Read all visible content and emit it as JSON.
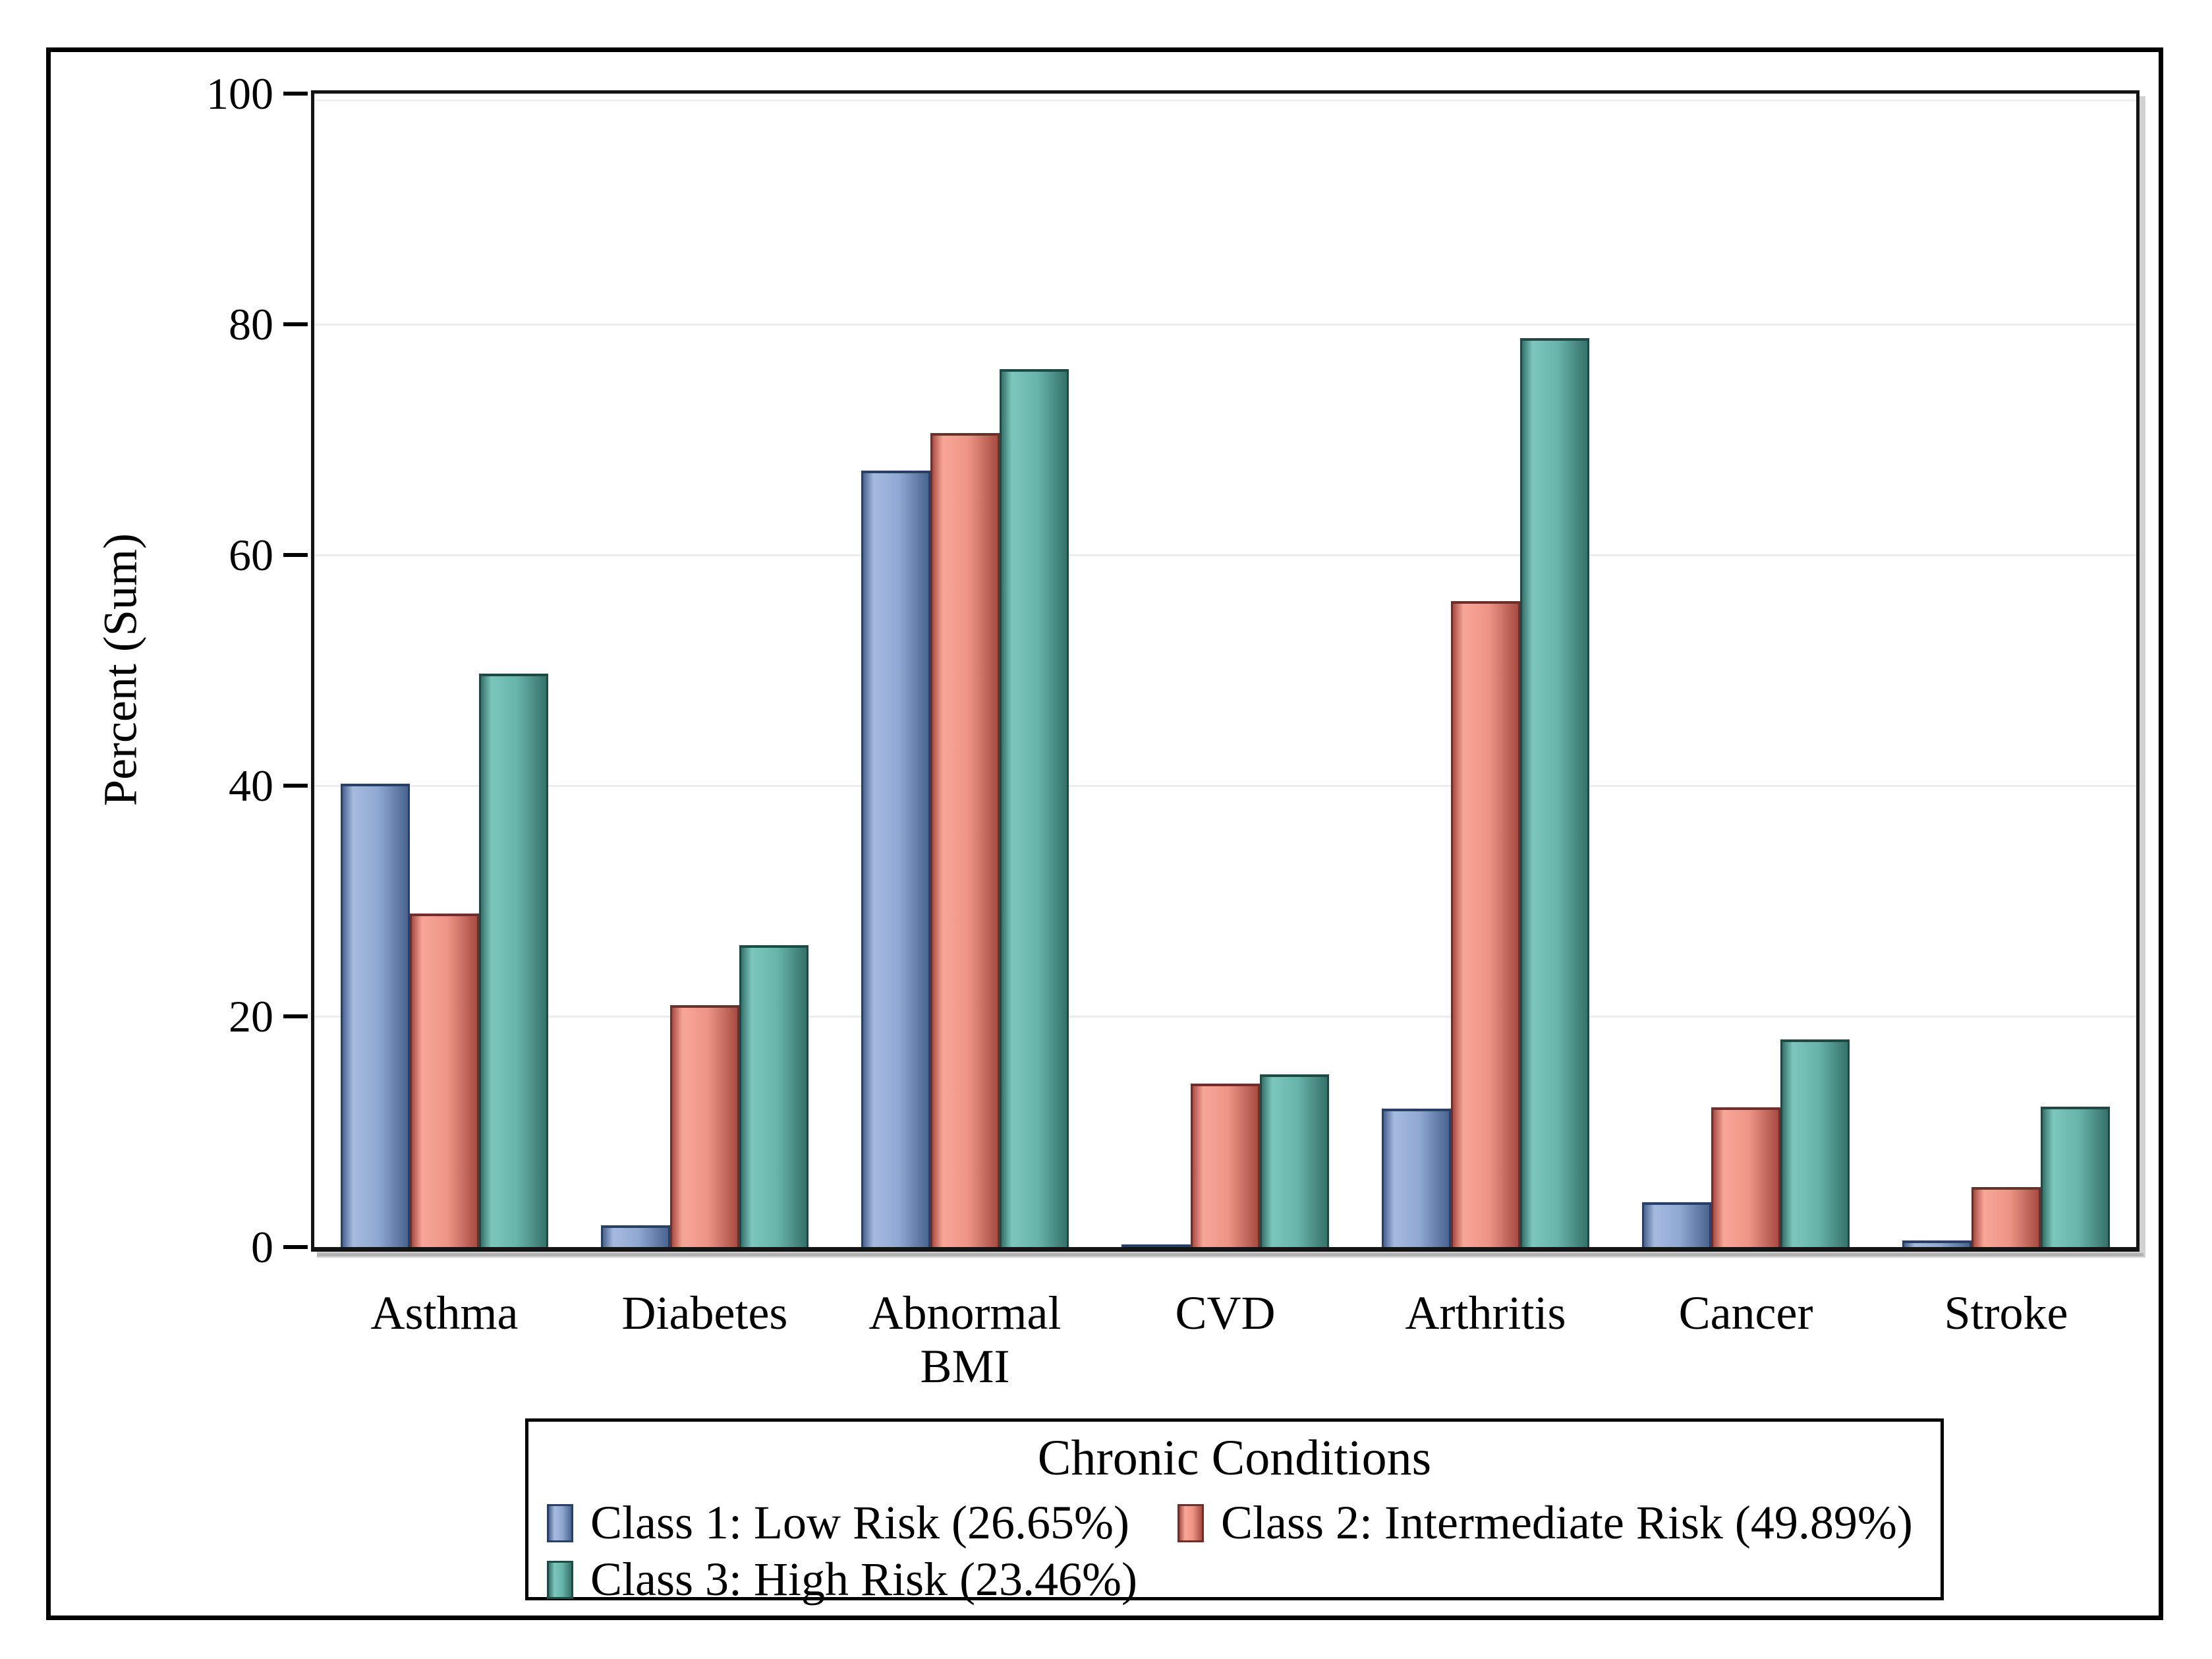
{
  "figure": {
    "background": "#FFFFFF",
    "border_color": "#000000",
    "gridline_color": "#ECECEC"
  },
  "chart_data": {
    "type": "bar",
    "title": "",
    "categories": [
      "Asthma",
      "Diabetes",
      "Abnormal BMI",
      "CVD",
      "Arthritis",
      "Cancer",
      "Stroke"
    ],
    "series": [
      {
        "name": "Class 1: Low Risk (26.65%)",
        "values": [
          40.2,
          1.9,
          67.3,
          0.2,
          12.0,
          3.9,
          0.6
        ],
        "color_light": "#A6BADF",
        "color_mid": "#8FA8D2",
        "color_dark": "#4A6490",
        "color_border": "#27406A"
      },
      {
        "name": "Class 2: Intermediate Risk (49.89%)",
        "values": [
          28.9,
          21.0,
          70.6,
          14.2,
          56.0,
          12.1,
          5.2
        ],
        "color_light": "#F7A698",
        "color_mid": "#EE9486",
        "color_dark": "#A84C43",
        "color_border": "#6E2F2A"
      },
      {
        "name": "Class 3: High Risk (23.46%)",
        "values": [
          49.7,
          26.2,
          76.1,
          15.0,
          78.8,
          18.0,
          12.2
        ],
        "color_light": "#7CC6BC",
        "color_mid": "#68B4AA",
        "color_dark": "#35726B",
        "color_border": "#1C4A45"
      }
    ],
    "xlabel": "",
    "ylabel": "Percent (Sum)",
    "ylim": [
      0,
      100
    ],
    "yticks": [
      0,
      20,
      40,
      60,
      80,
      100
    ],
    "grid": "horizontal",
    "legend_title": "Chronic Conditions",
    "legend_position": "bottom"
  }
}
